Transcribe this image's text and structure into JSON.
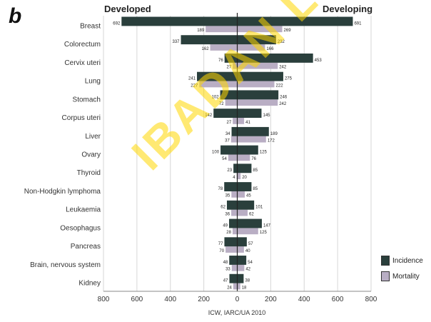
{
  "panel_label": "b",
  "side_labels": {
    "left": "Developed",
    "right": "Developing"
  },
  "x_caption": "ICW, IARC/UA 2010",
  "watermark_text": "IBADAN LIBRARY",
  "colors": {
    "incidence": "#2a3f3c",
    "mortality": "#b9aec4",
    "grid": "#d6d6d6",
    "axis": "#222222"
  },
  "chart_data": {
    "type": "bar",
    "orientation": "horizontal",
    "layout": "back-to-back",
    "title": "",
    "xlabel": "",
    "ylabel": "",
    "xlim": [
      -800,
      800
    ],
    "x_ticks": [
      -800,
      -600,
      -400,
      -200,
      0,
      200,
      400,
      600,
      800
    ],
    "x_tick_labels": [
      "800",
      "600",
      "400",
      "200",
      "0",
      "200",
      "400",
      "600",
      "800"
    ],
    "grid": true,
    "legend_position": "bottom-right",
    "categories": [
      "Breast",
      "Colorectum",
      "Cervix uteri",
      "Lung",
      "Stomach",
      "Corpus uteri",
      "Liver",
      "Ovary",
      "Thyroid",
      "Non-Hodgkin lymphoma",
      "Leukaemia",
      "Oesophagus",
      "Pancreas",
      "Brain, nervous system",
      "Kidney"
    ],
    "series": [
      {
        "name": "Incidence",
        "developed": [
          692,
          337,
          76,
          241,
          102,
          142,
          34,
          100,
          23,
          78,
          62,
          49,
          77,
          48,
          47
        ],
        "developing": [
          691,
          232,
          453,
          275,
          246,
          145,
          189,
          125,
          85,
          85,
          101,
          147,
          57,
          54,
          38
        ]
      },
      {
        "name": "Mortality",
        "developed": [
          189,
          162,
          27,
          227,
          72,
          27,
          37,
          54,
          4,
          35,
          36,
          28,
          70,
          33,
          24
        ],
        "developing": [
          269,
          166,
          242,
          222,
          242,
          41,
          172,
          76,
          20,
          45,
          62,
          125,
          40,
          42,
          18
        ]
      }
    ]
  }
}
